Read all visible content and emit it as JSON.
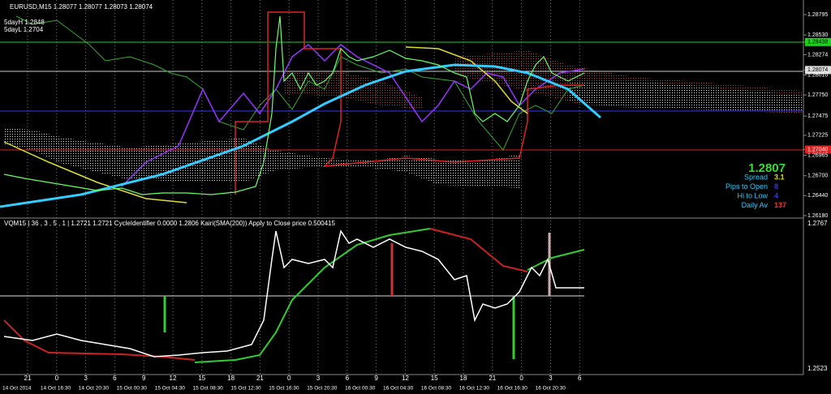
{
  "header": {
    "symbol": "EURUSD,M15  1.28077 1.28077 1.28073 1.28074",
    "day_high": "5dayH 1.2848",
    "day_low": "5dayL 1.2704"
  },
  "price_axis": [
    {
      "value": 1.28795,
      "label": "1.28795"
    },
    {
      "value": 1.2853,
      "label": "1.28530"
    },
    {
      "value": 1.28438,
      "label": "1.28438"
    },
    {
      "value": 1.28274,
      "label": "1.28274"
    },
    {
      "value": 1.28074,
      "label": "1.28074"
    },
    {
      "value": 1.2801,
      "label": "1.28010"
    },
    {
      "value": 1.2775,
      "label": "1.27750"
    },
    {
      "value": 1.27475,
      "label": "1.27475"
    },
    {
      "value": 1.27225,
      "label": "1.27225"
    },
    {
      "value": 1.2704,
      "label": "1.27040"
    },
    {
      "value": 1.26965,
      "label": "1.26965"
    },
    {
      "value": 1.267,
      "label": "1.26700"
    },
    {
      "value": 1.2644,
      "label": "1.26440"
    },
    {
      "value": 1.2618,
      "label": "1.26180"
    }
  ],
  "info_panel": {
    "price": "1.2807",
    "rows": [
      {
        "label": "Spread",
        "value": "3.1"
      },
      {
        "label": "Pips to Open",
        "value": "8"
      },
      {
        "label": "Hi to Low",
        "value": "4"
      },
      {
        "label": "Daily Av",
        "value": "137"
      }
    ]
  },
  "indicator": {
    "title": "VQM15 | 36 , 3 , 5 , 1 | 1.2721 1.2721 CycleIdentifier 0.0000 1.2806 Kairi(SMA(200)) Apply to Close price 0.500415",
    "axis_top": "1.2767",
    "axis_bottom": "1.2523"
  },
  "hours": [
    "21",
    "0",
    "3",
    "6",
    "9",
    "12",
    "15",
    "18",
    "21",
    "0",
    "3",
    "6",
    "9",
    "12",
    "15",
    "18",
    "21",
    "0",
    "3",
    "6"
  ],
  "dates": [
    "14 Oct 2014",
    "14 Oct 16:30",
    "14 Oct 20:30",
    "15 Oct 00:30",
    "15 Oct 04:30",
    "15 Oct 08:30",
    "15 Oct 12:30",
    "15 Oct 16:30",
    "15 Oct 20:30",
    "16 Oct 00:30",
    "16 Oct 04:30",
    "16 Oct 08:30",
    "16 Oct 12:30",
    "16 Oct 16:30",
    "16 Oct 20:30"
  ]
}
